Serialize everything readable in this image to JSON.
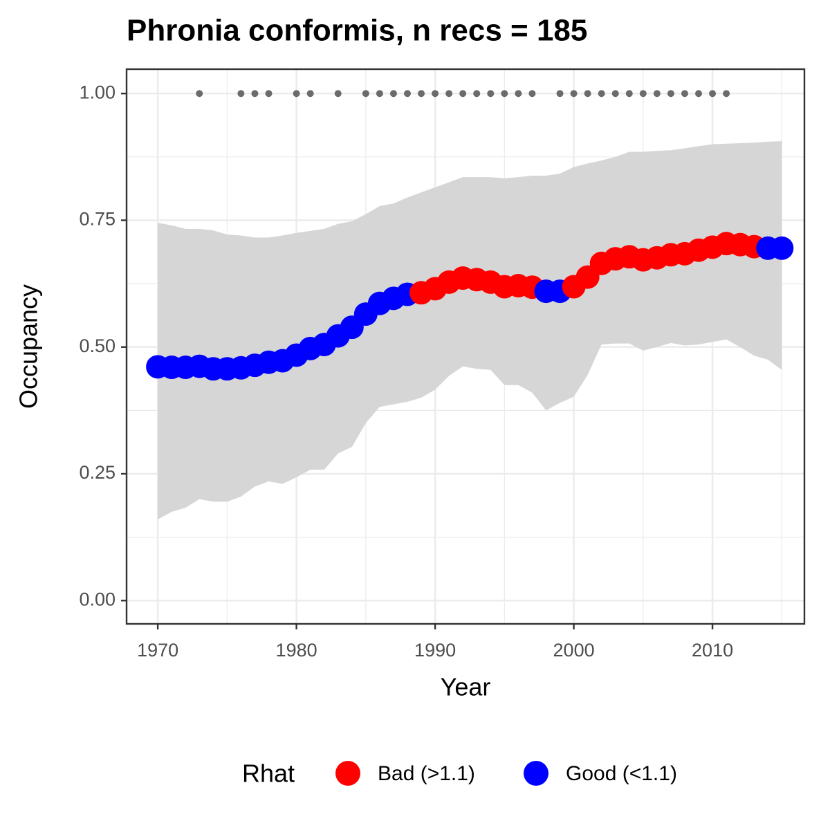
{
  "chart_data": {
    "type": "scatter",
    "title": "Phronia conformis, n recs = 185",
    "x_label": "Year",
    "y_label": "Occupancy",
    "legend_title": "Rhat",
    "legend_position": "bottom",
    "grid": true,
    "xlim": [
      1967.75,
      2016.63
    ],
    "ylim": [
      -0.046,
      1.048
    ],
    "xticks": [
      1970,
      1980,
      1990,
      2000,
      2010
    ],
    "minor_xticks": [
      1975,
      1985,
      1995,
      2005,
      2015
    ],
    "yticks": [
      {
        "value": 0,
        "label": "0.00"
      },
      {
        "value": 0.25,
        "label": "0.25"
      },
      {
        "value": 0.5,
        "label": "0.50"
      },
      {
        "value": 0.75,
        "label": "0.75"
      },
      {
        "value": 1,
        "label": "1.00"
      }
    ],
    "minor_yticks": [
      0.125,
      0.375,
      0.625,
      0.875
    ],
    "x": [
      1970,
      1971,
      1972,
      1973,
      1974,
      1975,
      1976,
      1977,
      1978,
      1979,
      1980,
      1981,
      1982,
      1983,
      1984,
      1985,
      1986,
      1987,
      1988,
      1989,
      1990,
      1991,
      1992,
      1993,
      1994,
      1995,
      1996,
      1997,
      1998,
      1999,
      2000,
      2001,
      2002,
      2003,
      2004,
      2005,
      2006,
      2007,
      2008,
      2009,
      2010,
      2011,
      2012,
      2013,
      2014,
      2015
    ],
    "series": [
      {
        "name": "Bad (>1.1)",
        "color": "#ff0000",
        "values": [
          null,
          null,
          null,
          null,
          null,
          null,
          null,
          null,
          null,
          null,
          null,
          null,
          null,
          null,
          null,
          null,
          null,
          null,
          null,
          0.607,
          0.615,
          0.628,
          0.636,
          0.633,
          0.628,
          0.619,
          0.621,
          0.618,
          null,
          null,
          0.619,
          0.638,
          0.665,
          0.674,
          0.678,
          0.672,
          0.676,
          0.682,
          0.684,
          0.691,
          0.697,
          0.704,
          0.702,
          0.698,
          null,
          null
        ]
      },
      {
        "name": "Good (<1.1)",
        "color": "#0000ff",
        "values": [
          0.461,
          0.46,
          0.46,
          0.462,
          0.457,
          0.457,
          0.459,
          0.464,
          0.47,
          0.473,
          0.484,
          0.497,
          0.505,
          0.522,
          0.539,
          0.565,
          0.586,
          0.596,
          0.604,
          null,
          null,
          null,
          null,
          null,
          null,
          null,
          null,
          null,
          0.61,
          0.61,
          null,
          null,
          null,
          null,
          null,
          null,
          null,
          null,
          null,
          null,
          null,
          null,
          null,
          null,
          0.695,
          0.695
        ]
      }
    ],
    "band": {
      "color": "#d6d6d6",
      "upper": [
        0.745,
        0.74,
        0.733,
        0.733,
        0.73,
        0.722,
        0.72,
        0.716,
        0.716,
        0.72,
        0.725,
        0.729,
        0.733,
        0.743,
        0.748,
        0.762,
        0.778,
        0.783,
        0.795,
        0.805,
        0.815,
        0.825,
        0.835,
        0.835,
        0.835,
        0.833,
        0.835,
        0.838,
        0.838,
        0.842,
        0.855,
        0.862,
        0.868,
        0.875,
        0.885,
        0.885,
        0.887,
        0.888,
        0.892,
        0.896,
        0.9,
        0.901,
        0.902,
        0.903,
        0.905,
        0.906
      ],
      "lower": [
        0.16,
        0.175,
        0.183,
        0.2,
        0.195,
        0.195,
        0.205,
        0.225,
        0.235,
        0.23,
        0.243,
        0.258,
        0.258,
        0.29,
        0.303,
        0.35,
        0.382,
        0.387,
        0.392,
        0.4,
        0.416,
        0.443,
        0.462,
        0.457,
        0.455,
        0.425,
        0.425,
        0.41,
        0.375,
        0.39,
        0.402,
        0.445,
        0.505,
        0.507,
        0.507,
        0.493,
        0.5,
        0.508,
        0.503,
        0.505,
        0.51,
        0.515,
        0.5,
        0.483,
        0.475,
        0.455
      ]
    },
    "records": {
      "color": "#6b6b6b",
      "x": [
        1973,
        1976,
        1977,
        1978,
        1980,
        1981,
        1983,
        1985,
        1986,
        1987,
        1988,
        1989,
        1990,
        1991,
        1992,
        1993,
        1994,
        1995,
        1996,
        1997,
        1999,
        2000,
        2001,
        2002,
        2003,
        2004,
        2005,
        2006,
        2007,
        2008,
        2009,
        2010,
        2011
      ],
      "values": [
        1,
        1,
        1,
        1,
        1,
        1,
        1,
        1,
        1,
        1,
        1,
        1,
        1,
        1,
        1,
        1,
        1,
        1,
        1,
        1,
        1,
        1,
        1,
        1,
        1,
        1,
        1,
        1,
        1,
        1,
        1,
        1,
        1
      ]
    }
  }
}
